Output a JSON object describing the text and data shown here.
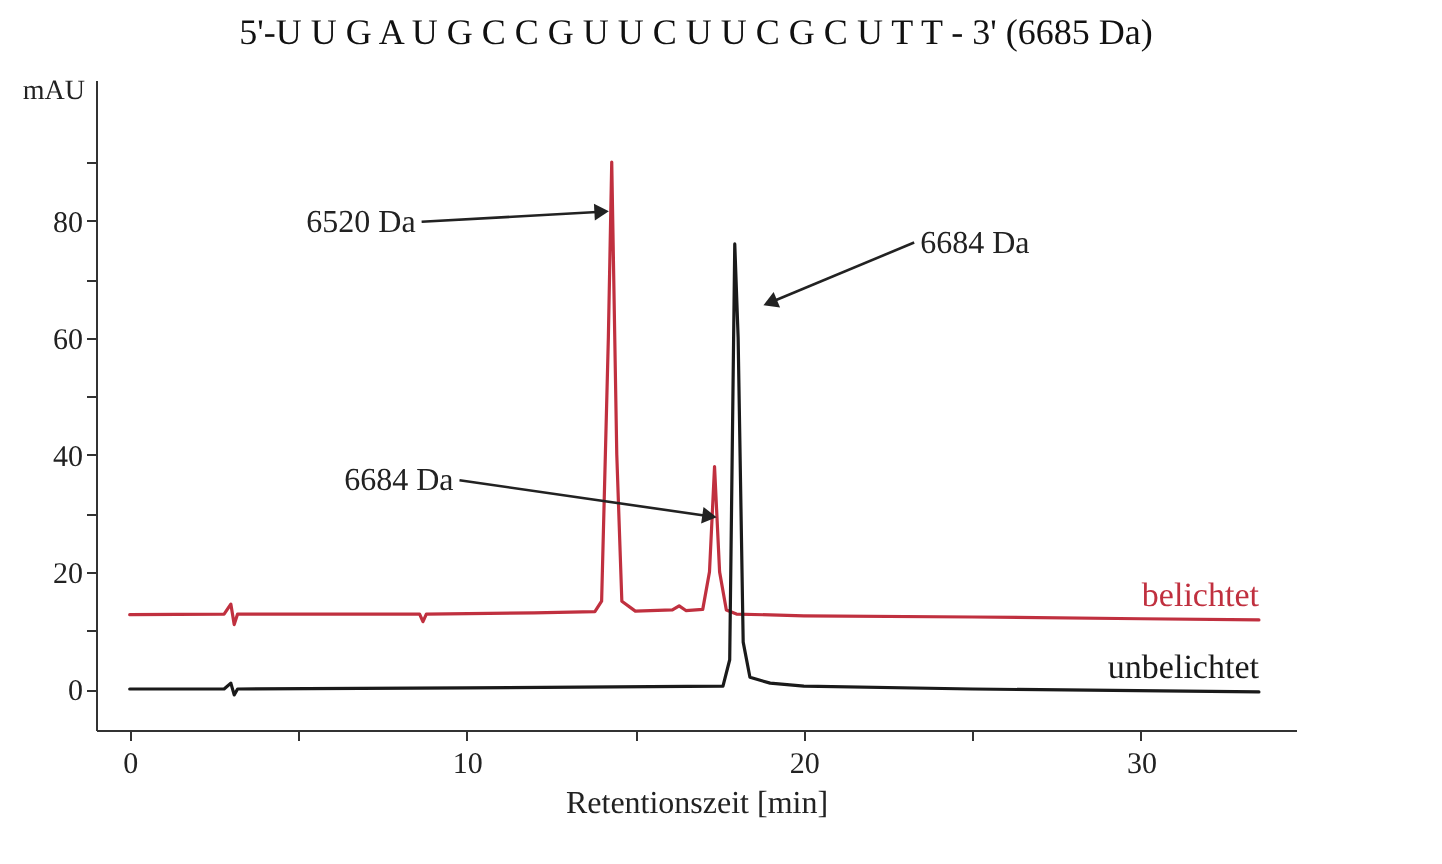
{
  "chart_data": {
    "type": "line",
    "title": "5'-U U G A U G C C G U U C U U C G C U T T - 3'  (6685 Da)",
    "xlabel": "Retentionszeit [min]",
    "ylabel": "mAU",
    "series": [
      {
        "name": "belichtet",
        "color": "#c0303f",
        "x": [
          0,
          2.8,
          3.0,
          3.1,
          3.2,
          5,
          8.6,
          8.7,
          8.8,
          12,
          13.8,
          14.0,
          14.2,
          14.3,
          14.45,
          14.6,
          15,
          16.1,
          16.3,
          16.5,
          17.0,
          17.2,
          17.35,
          17.5,
          17.7,
          18,
          20,
          25,
          30,
          33.5
        ],
        "values": [
          12.7,
          12.8,
          14.5,
          11,
          12.8,
          12.8,
          12.8,
          11.5,
          12.8,
          13.0,
          13.2,
          15,
          60,
          90,
          40,
          15,
          13.3,
          13.5,
          14.2,
          13.4,
          13.6,
          20,
          38,
          20,
          13.5,
          12.8,
          12.5,
          12.3,
          12,
          11.8
        ]
      },
      {
        "name": "unbelichtet",
        "color": "#1a1a1a",
        "x": [
          0,
          2.8,
          3.0,
          3.1,
          3.2,
          10,
          17.6,
          17.8,
          17.95,
          18.05,
          18.2,
          18.4,
          19,
          20,
          25,
          33.5
        ],
        "values": [
          0,
          0,
          1,
          -1,
          0,
          0.2,
          0.5,
          5,
          76,
          60,
          8,
          2,
          1,
          0.5,
          0,
          -0.5
        ]
      }
    ],
    "annotations": [
      {
        "text": "6520 Da",
        "x": 14.0,
        "y": 81.5
      },
      {
        "text": "6684 Da",
        "x": 17.2,
        "y": 29.5
      },
      {
        "text": "6684 Da",
        "x": 19.0,
        "y": 66
      }
    ],
    "xlim": [
      -1,
      34.6
    ],
    "ylim": [
      -7,
      104
    ],
    "xticks": [
      0,
      {
        "value": 5,
        "label": null
      },
      10,
      {
        "value": 15,
        "label": null
      },
      20,
      {
        "value": 25,
        "label": null
      },
      30
    ],
    "yticks": [
      0,
      {
        "value": 10,
        "label": null
      },
      20,
      {
        "value": 30,
        "label": null
      },
      40,
      {
        "value": 50,
        "label": null
      },
      60,
      {
        "value": 70,
        "label": null
      },
      80,
      {
        "value": 90,
        "label": null
      }
    ],
    "grid": false,
    "legend": false,
    "line_style": "solid"
  }
}
